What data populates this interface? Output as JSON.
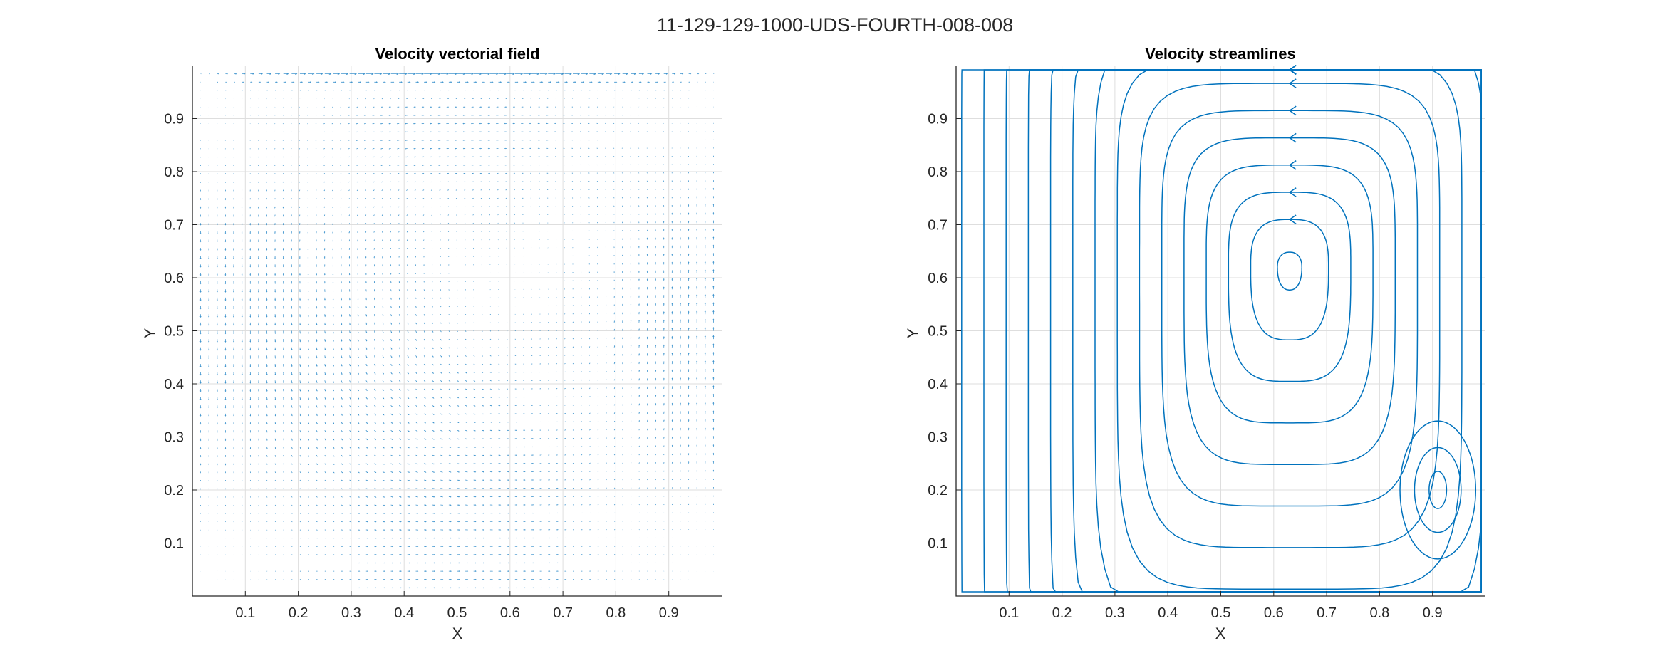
{
  "figure_title": "11-129-129-1000-UDS-FOURTH-008-008",
  "colors": {
    "series": "#0072BD",
    "grid": "#dedede",
    "axis": "#262626"
  },
  "chart_data": [
    {
      "type": "quiver",
      "title": "Velocity vectorial field",
      "xlabel": "X",
      "ylabel": "Y",
      "xlim": [
        0,
        1
      ],
      "ylim": [
        0,
        1
      ],
      "xticks": [
        "0.1",
        "0.2",
        "0.3",
        "0.4",
        "0.5",
        "0.6",
        "0.7",
        "0.8",
        "0.9"
      ],
      "yticks": [
        "0.1",
        "0.2",
        "0.3",
        "0.4",
        "0.5",
        "0.6",
        "0.7",
        "0.8",
        "0.9"
      ],
      "grid": true,
      "grid_points": 129,
      "vortex_center": [
        0.62,
        0.62
      ]
    },
    {
      "type": "streamlines",
      "title": "Velocity streamlines",
      "xlabel": "X",
      "ylabel": "Y",
      "xlim": [
        0,
        1
      ],
      "ylim": [
        0,
        1
      ],
      "xticks": [
        "0.1",
        "0.2",
        "0.3",
        "0.4",
        "0.5",
        "0.6",
        "0.7",
        "0.8",
        "0.9"
      ],
      "yticks": [
        "0.1",
        "0.2",
        "0.3",
        "0.4",
        "0.5",
        "0.6",
        "0.7",
        "0.8",
        "0.9"
      ],
      "grid": true,
      "primary_vortex_center": [
        0.63,
        0.62
      ],
      "secondary_vortex_center": [
        0.91,
        0.2
      ]
    }
  ]
}
